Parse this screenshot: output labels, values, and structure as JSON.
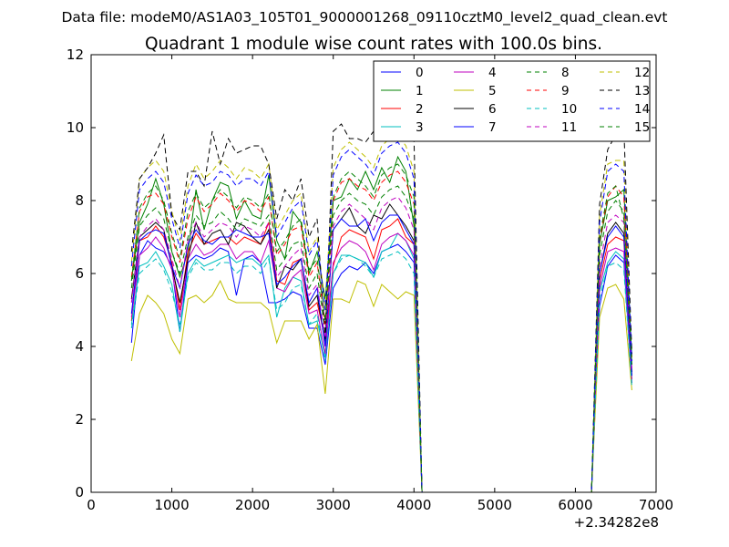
{
  "figure": {
    "suptitle": "Data file: modeM0/AS1A03_105T01_9000001268_09110cztM0_level2_quad_clean.evt"
  },
  "chart_data": {
    "type": "line",
    "title": "Quadrant 1 module wise count rates with 100.0s bins.",
    "xlabel": "",
    "ylabel": "",
    "xlim": [
      0,
      7000
    ],
    "ylim": [
      0,
      12
    ],
    "x_offset_label": "+2.34282e8",
    "xticks": [
      0,
      1000,
      2000,
      3000,
      4000,
      5000,
      6000,
      7000
    ],
    "yticks": [
      0,
      2,
      4,
      6,
      8,
      10,
      12
    ],
    "xtick_labels": [
      "0",
      "1000",
      "2000",
      "3000",
      "4000",
      "5000",
      "6000",
      "7000"
    ],
    "ytick_labels": [
      "0",
      "2",
      "4",
      "6",
      "8",
      "10",
      "12"
    ],
    "grid": false,
    "legend_position": "top-right",
    "legend_columns": 4,
    "x": [
      500,
      600,
      700,
      800,
      900,
      1000,
      1100,
      1200,
      1300,
      1400,
      1500,
      1600,
      1700,
      1800,
      1900,
      2000,
      2100,
      2200,
      2300,
      2400,
      2500,
      2600,
      2700,
      2800,
      2900,
      3000,
      3100,
      3200,
      3300,
      3400,
      3500,
      3600,
      3700,
      3800,
      3900,
      4000,
      4100,
      4200,
      6200,
      6300,
      6400,
      6500,
      6600,
      6700
    ],
    "series": [
      {
        "name": "0",
        "color": "#0000ff",
        "dash": false,
        "values": [
          4.1,
          6.5,
          6.9,
          6.7,
          6.6,
          6.2,
          4.4,
          6.3,
          6.5,
          6.4,
          6.5,
          6.7,
          6.6,
          5.4,
          6.4,
          6.5,
          6.3,
          5.2,
          5.2,
          5.3,
          5.5,
          5.4,
          4.5,
          4.5,
          3.5,
          5.6,
          6.0,
          6.2,
          6.1,
          6.3,
          6.0,
          6.6,
          6.7,
          6.8,
          6.6,
          6.3,
          0.0,
          0.0,
          0.0,
          5.1,
          6.2,
          6.5,
          6.3,
          3.0
        ]
      },
      {
        "name": "1",
        "color": "#008000",
        "dash": false,
        "values": [
          5.8,
          7.4,
          7.9,
          8.6,
          7.9,
          6.6,
          5.9,
          6.6,
          8.3,
          7.2,
          8.0,
          8.5,
          8.4,
          7.5,
          8.0,
          7.6,
          7.5,
          8.7,
          6.9,
          6.4,
          7.7,
          7.4,
          6.0,
          6.6,
          5.3,
          8.0,
          8.1,
          8.6,
          8.3,
          8.8,
          8.3,
          8.9,
          8.5,
          9.2,
          8.8,
          7.3,
          0.0,
          0.0,
          0.0,
          6.8,
          8.0,
          8.1,
          8.3,
          3.7
        ]
      },
      {
        "name": "2",
        "color": "#ff0000",
        "dash": false,
        "values": [
          4.7,
          6.9,
          7.0,
          7.3,
          7.0,
          6.3,
          5.0,
          6.6,
          7.1,
          6.8,
          6.9,
          7.0,
          7.0,
          6.8,
          7.0,
          6.9,
          6.8,
          7.4,
          5.8,
          5.7,
          6.3,
          6.4,
          5.0,
          5.2,
          4.2,
          6.2,
          7.0,
          7.2,
          7.1,
          7.0,
          6.4,
          7.2,
          7.3,
          7.5,
          7.0,
          6.8,
          0.0,
          0.0,
          0.0,
          5.8,
          6.8,
          7.0,
          6.9,
          3.2
        ]
      },
      {
        "name": "3",
        "color": "#00bfbf",
        "dash": false,
        "values": [
          4.6,
          6.2,
          6.3,
          6.6,
          6.2,
          5.7,
          4.4,
          6.0,
          6.4,
          6.2,
          6.3,
          6.4,
          6.5,
          6.3,
          6.4,
          6.4,
          6.2,
          6.5,
          4.8,
          5.6,
          5.9,
          5.8,
          4.6,
          4.7,
          3.7,
          6.0,
          6.5,
          6.5,
          6.4,
          6.3,
          5.9,
          6.6,
          6.7,
          7.1,
          6.9,
          6.4,
          0.0,
          0.0,
          0.0,
          5.5,
          6.3,
          6.6,
          6.4,
          3.1
        ]
      },
      {
        "name": "4",
        "color": "#bf00bf",
        "dash": false,
        "values": [
          4.8,
          6.5,
          6.7,
          7.0,
          6.7,
          6.1,
          4.8,
          6.4,
          6.8,
          6.5,
          6.6,
          6.8,
          6.8,
          6.4,
          6.6,
          6.6,
          6.3,
          6.9,
          5.6,
          5.5,
          5.9,
          6.1,
          4.9,
          5.0,
          3.8,
          6.3,
          6.7,
          6.9,
          6.8,
          6.6,
          6.1,
          6.8,
          7.0,
          7.1,
          6.9,
          6.5,
          0.0,
          0.0,
          0.0,
          5.6,
          6.6,
          6.7,
          6.6,
          3.1
        ]
      },
      {
        "name": "5",
        "color": "#bfbf00",
        "dash": false,
        "values": [
          3.6,
          4.9,
          5.4,
          5.2,
          4.9,
          4.2,
          3.8,
          5.3,
          5.4,
          5.2,
          5.4,
          5.8,
          5.3,
          5.2,
          5.2,
          5.2,
          5.2,
          5.0,
          4.1,
          4.7,
          4.7,
          4.7,
          4.2,
          4.6,
          2.7,
          5.3,
          5.3,
          5.2,
          5.8,
          5.7,
          5.1,
          5.7,
          5.5,
          5.3,
          5.5,
          5.4,
          0.0,
          0.0,
          0.0,
          4.8,
          5.6,
          5.7,
          5.3,
          2.8
        ]
      },
      {
        "name": "6",
        "color": "#000000",
        "dash": false,
        "values": [
          5.3,
          7.0,
          7.2,
          7.4,
          7.2,
          6.2,
          5.2,
          6.4,
          7.4,
          6.8,
          7.1,
          7.2,
          6.8,
          7.4,
          7.3,
          7.0,
          6.8,
          7.2,
          5.6,
          6.2,
          6.1,
          6.4,
          5.1,
          5.4,
          4.1,
          7.2,
          7.5,
          7.8,
          7.3,
          7.1,
          7.6,
          7.5,
          7.9,
          7.6,
          7.3,
          6.9,
          0.0,
          0.0,
          0.0,
          6.0,
          7.1,
          7.4,
          7.1,
          3.3
        ]
      },
      {
        "name": "7",
        "color": "#0000ff",
        "dash": false,
        "values": [
          4.9,
          6.9,
          7.1,
          7.2,
          7.1,
          6.2,
          5.6,
          6.8,
          7.2,
          6.9,
          6.8,
          7.0,
          7.0,
          7.2,
          7.1,
          7.0,
          7.0,
          7.1,
          5.7,
          5.9,
          6.2,
          6.4,
          5.2,
          5.6,
          4.0,
          7.2,
          7.5,
          7.3,
          7.3,
          7.5,
          6.9,
          7.4,
          7.6,
          7.6,
          7.2,
          6.8,
          0.0,
          0.0,
          0.0,
          6.0,
          7.0,
          7.3,
          7.0,
          3.2
        ]
      },
      {
        "name": "8",
        "color": "#008000",
        "dash": true,
        "values": [
          5.6,
          7.3,
          7.6,
          7.8,
          7.5,
          6.6,
          6.0,
          7.0,
          7.6,
          7.3,
          7.4,
          7.7,
          7.5,
          7.2,
          7.5,
          7.4,
          7.3,
          7.6,
          6.1,
          6.4,
          6.8,
          6.9,
          5.6,
          6.0,
          4.4,
          7.6,
          8.0,
          8.2,
          8.0,
          7.9,
          7.6,
          8.1,
          8.3,
          8.4,
          8.1,
          7.5,
          0.0,
          0.0,
          0.0,
          6.5,
          7.7,
          8.0,
          7.7,
          3.5
        ]
      },
      {
        "name": "9",
        "color": "#ff0000",
        "dash": true,
        "values": [
          5.9,
          7.7,
          8.1,
          8.2,
          7.9,
          7.0,
          6.3,
          7.5,
          8.1,
          7.7,
          7.9,
          8.2,
          8.0,
          7.7,
          8.0,
          7.9,
          7.7,
          8.1,
          6.5,
          6.8,
          7.2,
          7.3,
          5.9,
          6.3,
          4.6,
          8.0,
          8.5,
          8.6,
          8.4,
          8.3,
          8.0,
          8.5,
          8.7,
          8.8,
          8.5,
          7.9,
          0.0,
          0.0,
          0.0,
          6.9,
          8.1,
          8.4,
          8.1,
          3.7
        ]
      },
      {
        "name": "10",
        "color": "#00bfbf",
        "dash": true,
        "values": [
          4.5,
          6.0,
          6.2,
          6.4,
          6.1,
          5.5,
          4.6,
          5.9,
          6.3,
          6.1,
          6.1,
          6.3,
          6.3,
          6.0,
          6.2,
          6.2,
          6.0,
          6.4,
          5.0,
          5.2,
          5.6,
          5.7,
          4.6,
          4.9,
          3.6,
          6.0,
          6.4,
          6.5,
          6.4,
          6.2,
          5.9,
          6.4,
          6.5,
          6.6,
          6.4,
          6.0,
          0.0,
          0.0,
          0.0,
          5.3,
          6.2,
          6.3,
          6.1,
          2.9
        ]
      },
      {
        "name": "11",
        "color": "#bf00bf",
        "dash": true,
        "values": [
          5.2,
          7.0,
          7.3,
          7.5,
          7.2,
          6.4,
          5.6,
          6.9,
          7.4,
          7.0,
          7.2,
          7.4,
          7.3,
          7.0,
          7.3,
          7.2,
          7.0,
          7.4,
          5.9,
          6.2,
          6.5,
          6.7,
          5.4,
          5.7,
          4.2,
          7.3,
          7.7,
          7.9,
          7.7,
          7.5,
          7.2,
          7.8,
          8.0,
          8.1,
          7.8,
          7.2,
          0.0,
          0.0,
          0.0,
          6.2,
          7.4,
          7.6,
          7.4,
          3.4
        ]
      },
      {
        "name": "12",
        "color": "#bfbf00",
        "dash": true,
        "values": [
          6.3,
          8.6,
          8.9,
          9.1,
          8.8,
          7.7,
          6.9,
          8.4,
          9.0,
          8.6,
          8.8,
          9.1,
          8.9,
          8.6,
          8.9,
          8.8,
          8.6,
          9.0,
          7.2,
          7.6,
          8.0,
          8.2,
          6.6,
          7.0,
          5.1,
          8.9,
          9.4,
          9.6,
          9.4,
          9.2,
          8.9,
          9.5,
          9.7,
          9.8,
          9.5,
          8.8,
          0.0,
          0.0,
          0.0,
          7.6,
          9.0,
          9.1,
          9.1,
          3.7
        ]
      },
      {
        "name": "13",
        "color": "#000000",
        "dash": true,
        "values": [
          6.6,
          8.6,
          8.9,
          9.3,
          9.8,
          7.6,
          7.2,
          8.8,
          8.8,
          8.4,
          9.9,
          9.0,
          9.7,
          9.3,
          9.4,
          9.5,
          9.5,
          9.0,
          7.5,
          8.3,
          8.0,
          8.6,
          7.0,
          7.5,
          4.2,
          9.9,
          10.1,
          9.7,
          9.7,
          9.6,
          9.9,
          10.2,
          10.3,
          10.4,
          10.0,
          9.7,
          0.0,
          0.0,
          0.0,
          7.9,
          9.4,
          9.8,
          10.0,
          3.8
        ]
      },
      {
        "name": "14",
        "color": "#0000ff",
        "dash": true,
        "values": [
          6.2,
          8.3,
          8.6,
          8.8,
          8.5,
          7.5,
          6.7,
          8.2,
          8.7,
          8.4,
          8.5,
          8.8,
          8.7,
          8.4,
          8.6,
          8.6,
          8.4,
          8.8,
          7.0,
          7.4,
          7.8,
          8.0,
          6.5,
          6.9,
          5.0,
          8.7,
          9.2,
          9.4,
          9.2,
          9.0,
          8.7,
          9.3,
          9.5,
          9.6,
          9.3,
          8.6,
          0.0,
          0.0,
          0.0,
          7.4,
          8.8,
          9.0,
          8.8,
          3.6
        ]
      },
      {
        "name": "15",
        "color": "#008000",
        "dash": true,
        "values": [
          5.8,
          7.8,
          8.2,
          8.4,
          8.0,
          7.1,
          6.4,
          7.7,
          8.2,
          7.8,
          8.0,
          8.3,
          8.1,
          7.8,
          8.1,
          8.0,
          7.8,
          8.2,
          6.6,
          6.9,
          7.3,
          7.5,
          6.1,
          6.4,
          4.7,
          8.1,
          8.6,
          8.8,
          8.6,
          8.4,
          8.1,
          8.7,
          8.9,
          9.0,
          8.7,
          8.1,
          0.0,
          0.0,
          0.0,
          7.0,
          8.2,
          8.4,
          7.5,
          3.5
        ]
      }
    ]
  }
}
